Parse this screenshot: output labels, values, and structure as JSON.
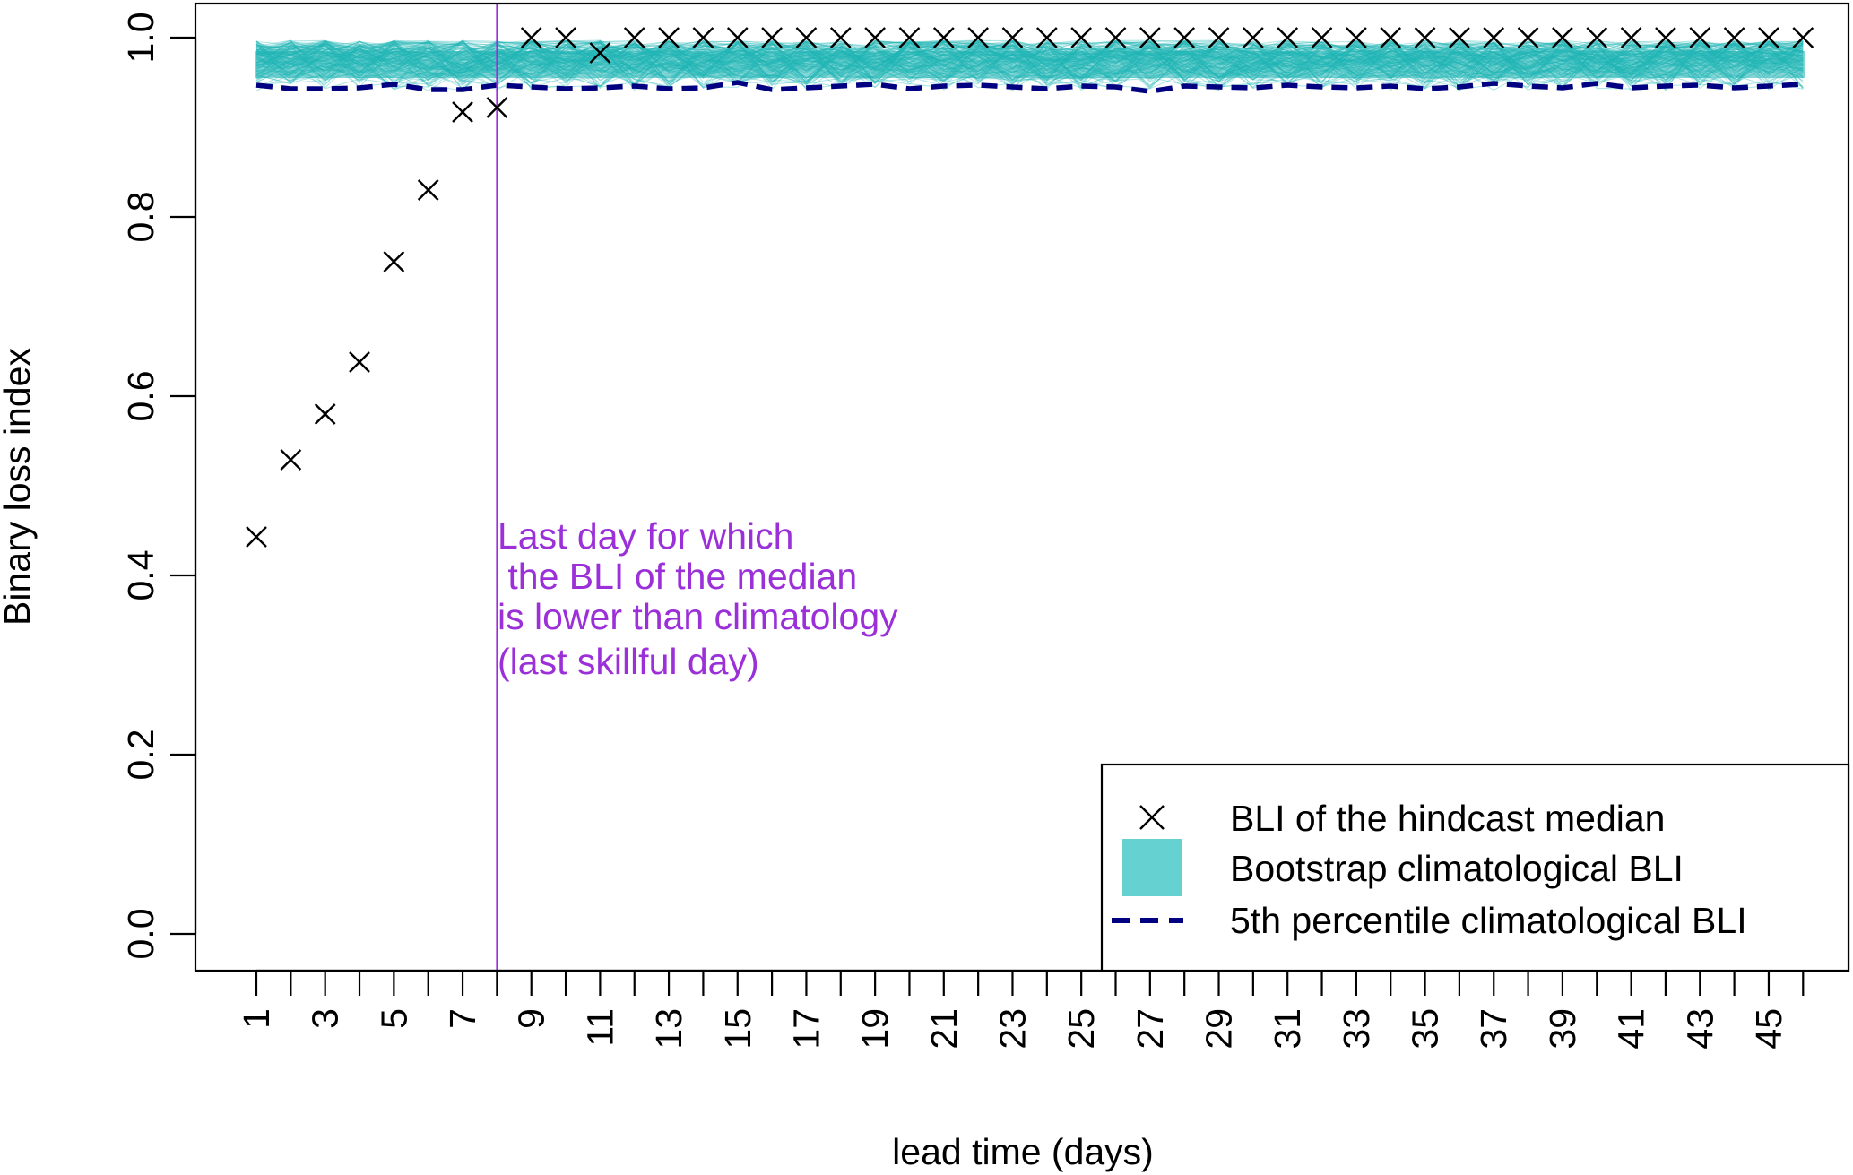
{
  "chart_data": {
    "type": "scatter",
    "xlabel": "lead time (days)",
    "ylabel": "Binary loss index",
    "xlim": [
      1,
      46
    ],
    "ylim": [
      0,
      1
    ],
    "x_ticks": [
      1,
      2,
      3,
      4,
      5,
      6,
      7,
      8,
      9,
      10,
      11,
      12,
      13,
      14,
      15,
      16,
      17,
      18,
      19,
      20,
      21,
      22,
      23,
      24,
      25,
      26,
      27,
      28,
      29,
      30,
      31,
      32,
      33,
      34,
      35,
      36,
      37,
      38,
      39,
      40,
      41,
      42,
      43,
      44,
      45,
      46
    ],
    "x_tick_labels": [
      "1",
      "3",
      "5",
      "7",
      "9",
      "11",
      "13",
      "15",
      "17",
      "19",
      "21",
      "23",
      "25",
      "27",
      "29",
      "31",
      "33",
      "35",
      "37",
      "39",
      "41",
      "43",
      "45"
    ],
    "y_ticks": [
      0.0,
      0.2,
      0.4,
      0.6,
      0.8,
      1.0
    ],
    "y_tick_labels": [
      "0.0",
      "0.2",
      "0.4",
      "0.6",
      "0.8",
      "1.0"
    ],
    "grid": false,
    "legend_position": "bottom-right",
    "series": [
      {
        "name": "BLI of the hindcast median",
        "marker": "x",
        "color": "#000000",
        "x": [
          1,
          2,
          3,
          4,
          5,
          6,
          7,
          8,
          9,
          10,
          11,
          12,
          13,
          14,
          15,
          16,
          17,
          18,
          19,
          20,
          21,
          22,
          23,
          24,
          25,
          26,
          27,
          28,
          29,
          30,
          31,
          32,
          33,
          34,
          35,
          36,
          37,
          38,
          39,
          40,
          41,
          42,
          43,
          44,
          45,
          46
        ],
        "y": [
          0.443,
          0.529,
          0.58,
          0.638,
          0.75,
          0.83,
          0.917,
          0.922,
          1,
          1,
          0.983,
          1,
          1,
          1,
          1,
          1,
          1,
          1,
          1,
          1,
          1,
          1,
          1,
          1,
          1,
          1,
          1,
          1,
          1,
          1,
          1,
          1,
          1,
          1,
          1,
          1,
          1,
          1,
          1,
          1,
          1,
          1,
          1,
          1,
          1,
          1
        ]
      },
      {
        "name": "Bootstrap climatological BLI",
        "style": "band",
        "color": "#1FB5B5",
        "legend_color": "#66D1D1",
        "lower": 0.91,
        "upper": 0.997
      },
      {
        "name": "5th percentile climatological BLI",
        "style": "dashed",
        "color": "#000080",
        "x": [
          1,
          2,
          3,
          4,
          5,
          6,
          7,
          8,
          9,
          10,
          11,
          12,
          13,
          14,
          15,
          16,
          17,
          18,
          19,
          20,
          21,
          22,
          23,
          24,
          25,
          26,
          27,
          28,
          29,
          30,
          31,
          32,
          33,
          34,
          35,
          36,
          37,
          38,
          39,
          40,
          41,
          42,
          43,
          44,
          45,
          46
        ],
        "y": [
          0.947,
          0.943,
          0.943,
          0.944,
          0.948,
          0.942,
          0.942,
          0.947,
          0.945,
          0.943,
          0.944,
          0.946,
          0.943,
          0.944,
          0.95,
          0.942,
          0.944,
          0.946,
          0.948,
          0.943,
          0.946,
          0.947,
          0.945,
          0.943,
          0.946,
          0.945,
          0.94,
          0.946,
          0.945,
          0.944,
          0.947,
          0.945,
          0.944,
          0.946,
          0.943,
          0.945,
          0.949,
          0.946,
          0.944,
          0.949,
          0.944,
          0.946,
          0.947,
          0.944,
          0.946,
          0.948
        ]
      }
    ],
    "vline": {
      "x": 8,
      "color": "#9B30D9"
    },
    "annotation": {
      "lines": [
        "Last day for which",
        " the BLI of the median",
        "is lower than climatology",
        "(last skillful day)"
      ],
      "color": "#9B30D9"
    }
  }
}
